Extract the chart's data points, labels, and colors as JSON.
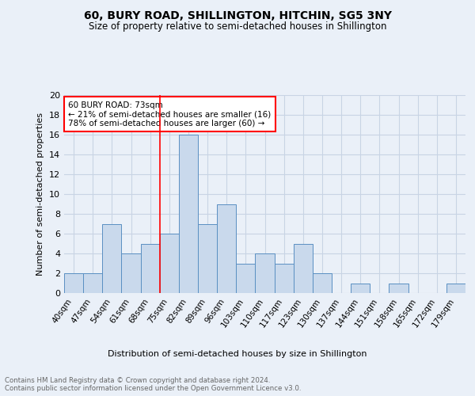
{
  "title1": "60, BURY ROAD, SHILLINGTON, HITCHIN, SG5 3NY",
  "title2": "Size of property relative to semi-detached houses in Shillington",
  "xlabel": "Distribution of semi-detached houses by size in Shillington",
  "ylabel": "Number of semi-detached properties",
  "footnote": "Contains HM Land Registry data © Crown copyright and database right 2024.\nContains public sector information licensed under the Open Government Licence v3.0.",
  "categories": [
    "40sqm",
    "47sqm",
    "54sqm",
    "61sqm",
    "68sqm",
    "75sqm",
    "82sqm",
    "89sqm",
    "96sqm",
    "103sqm",
    "110sqm",
    "117sqm",
    "123sqm",
    "130sqm",
    "137sqm",
    "144sqm",
    "151sqm",
    "158sqm",
    "165sqm",
    "172sqm",
    "179sqm"
  ],
  "values": [
    2,
    2,
    7,
    4,
    5,
    6,
    16,
    7,
    9,
    3,
    4,
    3,
    5,
    2,
    0,
    1,
    0,
    1,
    0,
    0,
    1
  ],
  "bar_color": "#c9d9ec",
  "bar_edge_color": "#5a8fc2",
  "annotation_text": "60 BURY ROAD: 73sqm\n← 21% of semi-detached houses are smaller (16)\n78% of semi-detached houses are larger (60) →",
  "annotation_box_color": "white",
  "annotation_box_edge": "red",
  "red_line_color": "red",
  "ylim": [
    0,
    20
  ],
  "yticks": [
    0,
    2,
    4,
    6,
    8,
    10,
    12,
    14,
    16,
    18,
    20
  ],
  "background_color": "#eaf0f8",
  "grid_color": "#c8d4e4"
}
